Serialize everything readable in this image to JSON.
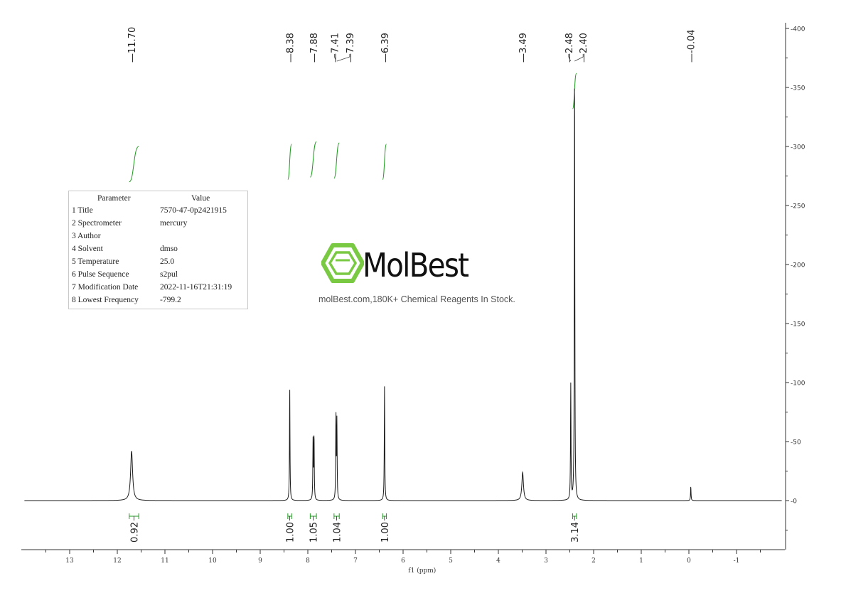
{
  "chart_data": {
    "type": "line",
    "xlabel": "f1 (ppm)",
    "xlim": [
      13.95,
      -1.95
    ],
    "x_reversed": true,
    "ylim": [
      -40,
      405
    ],
    "x_ticks": [
      13,
      12,
      11,
      10,
      9,
      8,
      7,
      6,
      5,
      4,
      3,
      2,
      1,
      0,
      -1
    ],
    "y_ticks": [
      0,
      50,
      100,
      150,
      200,
      250,
      300,
      350,
      400
    ],
    "peaks": [
      {
        "ppm": 11.7,
        "height": 42,
        "width": 0.025
      },
      {
        "ppm": 8.38,
        "height": 96,
        "width": 0.006
      },
      {
        "ppm": 7.89,
        "height": 50,
        "width": 0.006
      },
      {
        "ppm": 7.87,
        "height": 54,
        "width": 0.006
      },
      {
        "ppm": 7.41,
        "height": 71,
        "width": 0.006
      },
      {
        "ppm": 7.39,
        "height": 66,
        "width": 0.006
      },
      {
        "ppm": 6.39,
        "height": 97,
        "width": 0.006
      },
      {
        "ppm": 3.49,
        "height": 24,
        "width": 0.02
      },
      {
        "ppm": 2.48,
        "height": 98,
        "width": 0.006
      },
      {
        "ppm": 2.4,
        "height": 370,
        "width": 0.006
      },
      {
        "ppm": -0.04,
        "height": 12,
        "width": 0.006
      }
    ],
    "peak_labels": [
      "11.70",
      "8.38",
      "7.88",
      "7.41",
      "7.39",
      "6.39",
      "3.49",
      "2.48",
      "2.40",
      "-0.04"
    ],
    "integrals": [
      {
        "from": 11.75,
        "to": 11.55,
        "value": "0.92",
        "level": 300
      },
      {
        "from": 8.42,
        "to": 8.34,
        "value": "1.00",
        "level": 302
      },
      {
        "from": 7.95,
        "to": 7.82,
        "value": "1.05",
        "level": 304
      },
      {
        "from": 7.45,
        "to": 7.34,
        "value": "1.04",
        "level": 303
      },
      {
        "from": 6.43,
        "to": 6.35,
        "value": "1.00",
        "level": 302
      },
      {
        "from": 2.44,
        "to": 2.36,
        "value": "3.14",
        "level": 362
      }
    ],
    "colors": {
      "spectrum": "#1a1a1a",
      "integral": "#1f9a1f",
      "axis": "#333333"
    }
  },
  "parameters": {
    "header_param": "Parameter",
    "header_value": "Value",
    "rows": [
      {
        "label": "1 Title",
        "value": "7570-47-0p2421915"
      },
      {
        "label": "2 Spectrometer",
        "value": "mercury"
      },
      {
        "label": "3 Author",
        "value": ""
      },
      {
        "label": "4 Solvent",
        "value": "dmso"
      },
      {
        "label": "5 Temperature",
        "value": "25.0"
      },
      {
        "label": "6 Pulse Sequence",
        "value": "s2pul"
      },
      {
        "label": "7 Modification Date",
        "value": "2022-11-16T21:31:19"
      },
      {
        "label": "8 Lowest Frequency",
        "value": "-799.2"
      }
    ]
  },
  "watermark": {
    "brand": "MolBest",
    "tagline": "molBest.com,180K+ Chemical Reagents In Stock.",
    "logo_icon": "benzene-hexagon-icon",
    "brand_color": "#7ac943"
  }
}
